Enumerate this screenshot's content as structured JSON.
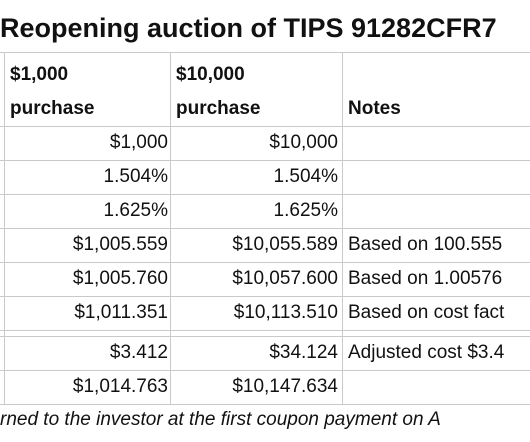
{
  "title": "Reopening auction of TIPS 91282CFR7",
  "headers": {
    "col1_line1": "$1,000",
    "col1_line2": "purchase",
    "col2_line1": "$10,000",
    "col2_line2": "purchase",
    "notes": "Notes"
  },
  "rows": [
    {
      "c1": "$1,000",
      "c2": "$10,000",
      "note": ""
    },
    {
      "c1": "1.504%",
      "c2": "1.504%",
      "note": ""
    },
    {
      "c1": "1.625%",
      "c2": "1.625%",
      "note": ""
    },
    {
      "c1": "$1,005.559",
      "c2": "$10,055.589",
      "note": "Based on 100.555"
    },
    {
      "c1": "$1,005.760",
      "c2": "$10,057.600",
      "note": "Based on 1.00576"
    },
    {
      "c1": "$1,011.351",
      "c2": "$10,113.510",
      "note": "Based on cost fact"
    },
    {
      "c1": "$3.412",
      "c2": "$34.124",
      "note": "Adjusted cost $3.4"
    },
    {
      "c1": "$1,014.763",
      "c2": "$10,147.634",
      "note": ""
    }
  ],
  "footer": "rned to the investor at the first coupon payment on A"
}
